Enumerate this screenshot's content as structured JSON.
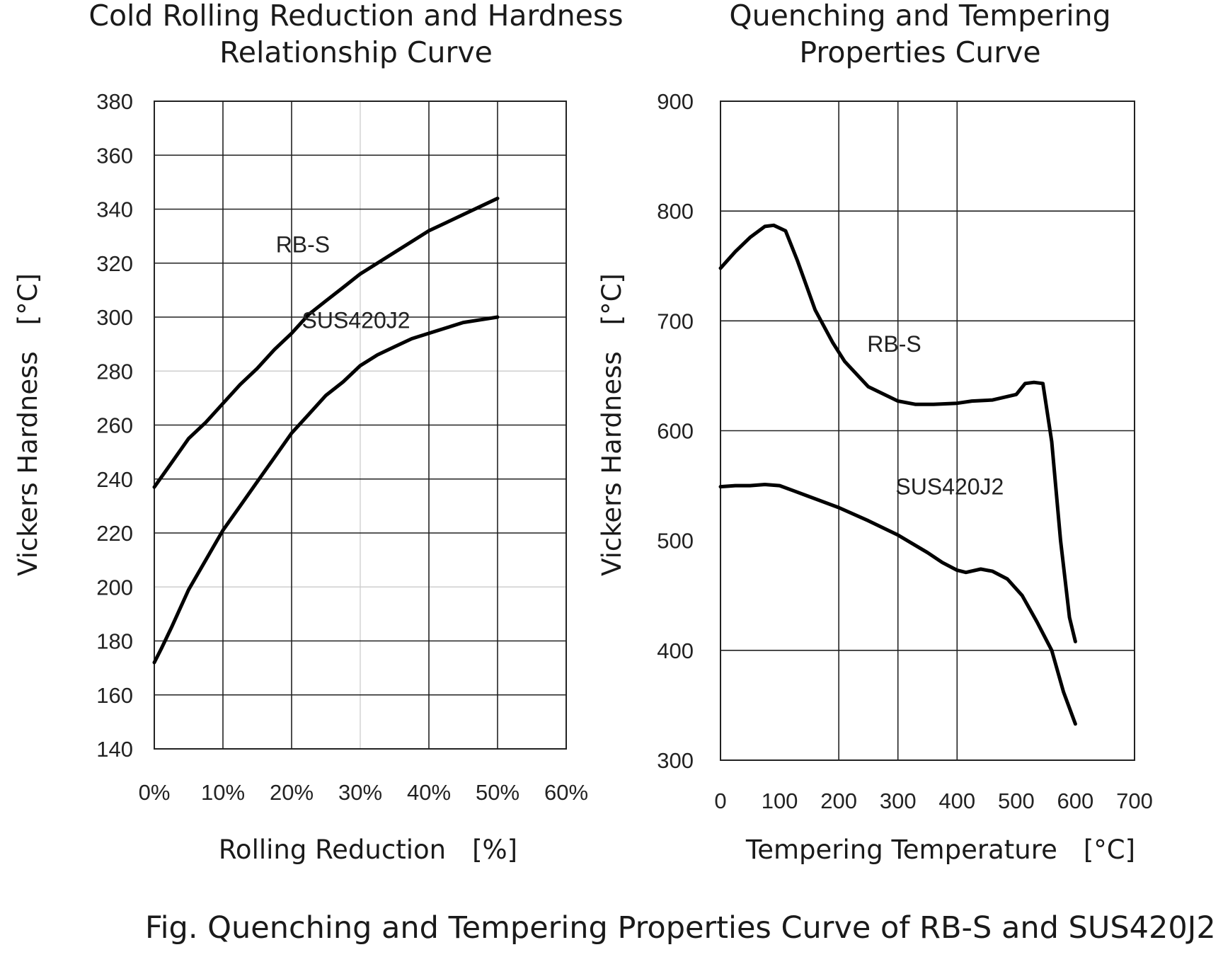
{
  "caption": "Fig. Quenching and Tempering Properties Curve of RB-S and SUS420J2",
  "chart_data": [
    {
      "type": "line",
      "title": [
        "Cold Rolling Reduction and Hardness",
        "Relationship Curve"
      ],
      "xlabel": "Rolling Reduction　[%]",
      "ylabel": "Vickers Hardness　[°C]",
      "xlim": [
        0,
        60
      ],
      "ylim": [
        140,
        380
      ],
      "x_ticks": [
        0,
        10,
        20,
        30,
        40,
        50,
        60
      ],
      "x_tick_labels": [
        "0%",
        "10%",
        "20%",
        "30%",
        "40%",
        "50%",
        "60%"
      ],
      "y_ticks": [
        140,
        160,
        180,
        200,
        220,
        240,
        260,
        280,
        300,
        320,
        340,
        360,
        380
      ],
      "y_tick_labels": [
        "140",
        "160",
        "180",
        "200",
        "220",
        "240",
        "260",
        "280",
        "300",
        "320",
        "340",
        "360",
        "380"
      ],
      "major_x": [
        10,
        20,
        40,
        50
      ],
      "minor_x": [
        30
      ],
      "major_y": [
        160,
        180,
        220,
        240,
        260,
        300,
        320,
        340,
        360
      ],
      "minor_y": [
        200,
        280
      ],
      "series": [
        {
          "name": "RB-S",
          "label_at": [
            17.7,
            324
          ],
          "x": [
            0,
            2.5,
            5,
            7.5,
            10,
            12.5,
            15,
            17.5,
            20,
            22.5,
            25,
            27.5,
            30,
            32.5,
            35,
            37.5,
            40,
            42.5,
            45,
            47.5,
            50
          ],
          "y": [
            237,
            246,
            255,
            261,
            268,
            275,
            281,
            288,
            294,
            301,
            306,
            311,
            316,
            320,
            324,
            328,
            332,
            335,
            338,
            341,
            344
          ]
        },
        {
          "name": "SUS420J2",
          "label_at": [
            21.5,
            296
          ],
          "x": [
            0,
            1,
            2.5,
            5,
            7.5,
            10,
            12.5,
            15,
            17.5,
            20,
            22.5,
            25,
            27.5,
            30,
            32.5,
            35,
            37.5,
            40,
            42.5,
            45,
            47.5,
            50
          ],
          "y": [
            172,
            177,
            185,
            199,
            210,
            221,
            230,
            239,
            248,
            257,
            264,
            271,
            276,
            282,
            286,
            289,
            292,
            294,
            296,
            298,
            299,
            300
          ]
        }
      ]
    },
    {
      "type": "line",
      "title": [
        "Quenching and Tempering",
        "Properties Curve"
      ],
      "xlabel": "Tempering Temperature　[°C]",
      "ylabel": "Vickers Hardness　[°C]",
      "xlim": [
        0,
        700
      ],
      "ylim": [
        300,
        900
      ],
      "x_ticks": [
        0,
        100,
        200,
        300,
        400,
        500,
        600,
        700
      ],
      "x_tick_labels": [
        "0",
        "100",
        "200",
        "300",
        "400",
        "500",
        "600",
        "700"
      ],
      "y_ticks": [
        300,
        400,
        500,
        600,
        700,
        800,
        900
      ],
      "y_tick_labels": [
        "300",
        "400",
        "500",
        "600",
        "700",
        "800",
        "900"
      ],
      "major_x": [
        200,
        300,
        400
      ],
      "minor_x": [],
      "major_y": [
        400,
        600,
        700,
        800
      ],
      "minor_y": [],
      "series": [
        {
          "name": "RB-S",
          "label_at": [
            248,
            672
          ],
          "x": [
            0,
            25,
            50,
            75,
            90,
            110,
            130,
            160,
            190,
            210,
            250,
            300,
            330,
            360,
            400,
            425,
            460,
            500,
            515,
            530,
            545,
            560,
            575,
            590,
            600
          ],
          "y": [
            748,
            763,
            776,
            786,
            787,
            782,
            755,
            710,
            680,
            663,
            640,
            627,
            624,
            624,
            625,
            627,
            628,
            633,
            643,
            644,
            643,
            590,
            500,
            430,
            408
          ]
        },
        {
          "name": "SUS420J2",
          "label_at": [
            296,
            542
          ],
          "x": [
            0,
            25,
            50,
            75,
            100,
            125,
            150,
            200,
            250,
            300,
            325,
            350,
            375,
            400,
            415,
            440,
            460,
            485,
            510,
            535,
            560,
            580,
            600
          ],
          "y": [
            549,
            550,
            550,
            551,
            550,
            545,
            540,
            530,
            518,
            505,
            497,
            489,
            480,
            473,
            471,
            474,
            472,
            465,
            450,
            426,
            400,
            362,
            333
          ]
        }
      ]
    }
  ]
}
